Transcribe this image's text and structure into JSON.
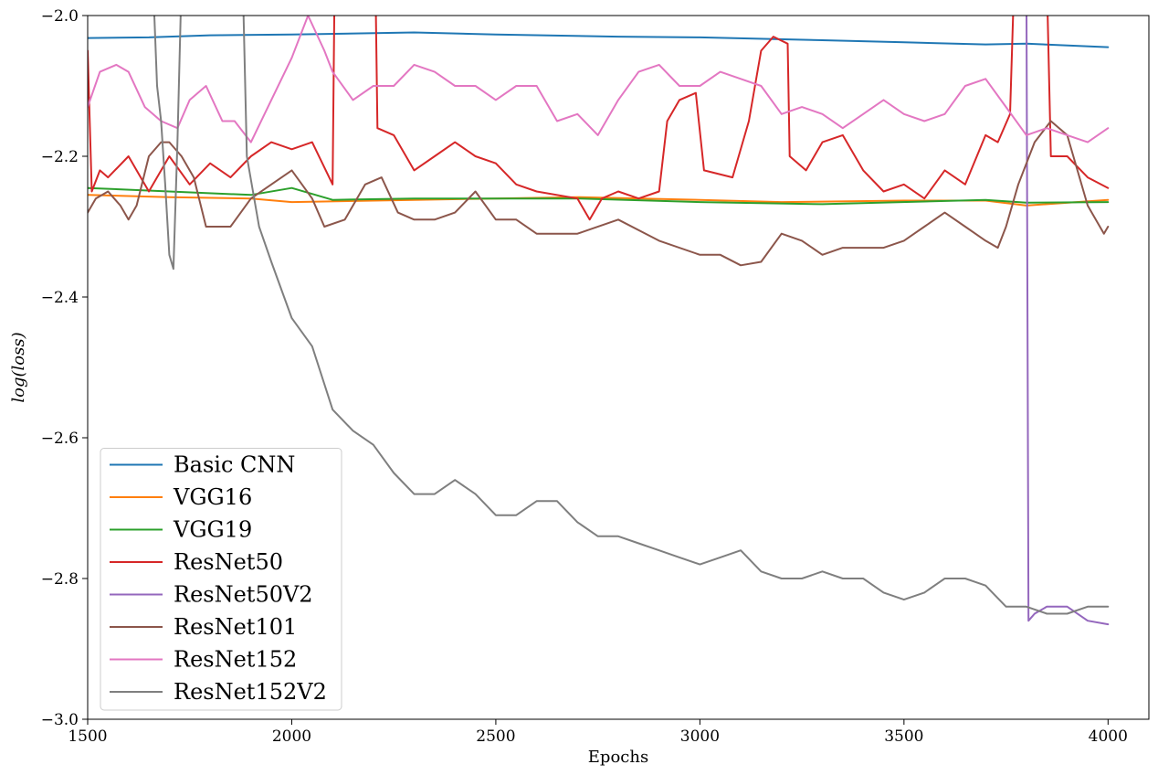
{
  "chart_data": {
    "type": "line",
    "title": "",
    "xlabel": "Epochs",
    "ylabel": "log(loss)",
    "xlim": [
      1500,
      4100
    ],
    "ylim": [
      -3.0,
      -2.0
    ],
    "x_ticks": [
      1500,
      2000,
      2500,
      3000,
      3500,
      4000
    ],
    "y_ticks": [
      -3.0,
      -2.8,
      -2.6,
      -2.4,
      -2.2,
      -2.0
    ],
    "x_tick_labels": [
      "1500",
      "2000",
      "2500",
      "3000",
      "3500",
      "4000"
    ],
    "y_tick_labels": [
      "−3.0",
      "−2.8",
      "−2.6",
      "−2.4",
      "−2.2",
      "−2.0"
    ],
    "grid": false,
    "legend_position": "lower-left",
    "series": [
      {
        "name": "Basic CNN",
        "color": "#1f77b4",
        "points": [
          [
            1500,
            -2.032
          ],
          [
            1650,
            -2.031
          ],
          [
            1800,
            -2.028
          ],
          [
            2000,
            -2.027
          ],
          [
            2300,
            -2.024
          ],
          [
            2500,
            -2.027
          ],
          [
            2800,
            -2.03
          ],
          [
            3000,
            -2.031
          ],
          [
            3300,
            -2.035
          ],
          [
            3500,
            -2.038
          ],
          [
            3700,
            -2.041
          ],
          [
            3800,
            -2.04
          ],
          [
            4000,
            -2.045
          ]
        ]
      },
      {
        "name": "VGG16",
        "color": "#ff7f0e",
        "points": [
          [
            1500,
            -2.255
          ],
          [
            1700,
            -2.258
          ],
          [
            1900,
            -2.26
          ],
          [
            2000,
            -2.265
          ],
          [
            2300,
            -2.262
          ],
          [
            2500,
            -2.26
          ],
          [
            2700,
            -2.258
          ],
          [
            3000,
            -2.262
          ],
          [
            3200,
            -2.265
          ],
          [
            3500,
            -2.263
          ],
          [
            3700,
            -2.263
          ],
          [
            3800,
            -2.27
          ],
          [
            4000,
            -2.262
          ]
        ]
      },
      {
        "name": "VGG19",
        "color": "#2ca02c",
        "points": [
          [
            1500,
            -2.245
          ],
          [
            1700,
            -2.25
          ],
          [
            1900,
            -2.255
          ],
          [
            2000,
            -2.245
          ],
          [
            2100,
            -2.262
          ],
          [
            2300,
            -2.26
          ],
          [
            2500,
            -2.26
          ],
          [
            2700,
            -2.26
          ],
          [
            3000,
            -2.265
          ],
          [
            3300,
            -2.268
          ],
          [
            3700,
            -2.262
          ],
          [
            3800,
            -2.266
          ],
          [
            4000,
            -2.265
          ]
        ]
      },
      {
        "name": "ResNet50",
        "color": "#d62728",
        "points": [
          [
            1500,
            -2.05
          ],
          [
            1510,
            -2.25
          ],
          [
            1530,
            -2.22
          ],
          [
            1550,
            -2.23
          ],
          [
            1600,
            -2.2
          ],
          [
            1650,
            -2.25
          ],
          [
            1700,
            -2.2
          ],
          [
            1750,
            -2.24
          ],
          [
            1800,
            -2.21
          ],
          [
            1850,
            -2.23
          ],
          [
            1900,
            -2.2
          ],
          [
            1950,
            -2.18
          ],
          [
            2000,
            -2.19
          ],
          [
            2050,
            -2.18
          ],
          [
            2100,
            -2.24
          ],
          [
            2105,
            -1.95
          ],
          [
            2205,
            -1.95
          ],
          [
            2210,
            -2.16
          ],
          [
            2250,
            -2.17
          ],
          [
            2300,
            -2.22
          ],
          [
            2350,
            -2.2
          ],
          [
            2400,
            -2.18
          ],
          [
            2450,
            -2.2
          ],
          [
            2500,
            -2.21
          ],
          [
            2550,
            -2.24
          ],
          [
            2600,
            -2.25
          ],
          [
            2700,
            -2.26
          ],
          [
            2730,
            -2.29
          ],
          [
            2760,
            -2.26
          ],
          [
            2800,
            -2.25
          ],
          [
            2850,
            -2.26
          ],
          [
            2900,
            -2.25
          ],
          [
            2920,
            -2.15
          ],
          [
            2950,
            -2.12
          ],
          [
            2990,
            -2.11
          ],
          [
            3010,
            -2.22
          ],
          [
            3080,
            -2.23
          ],
          [
            3120,
            -2.15
          ],
          [
            3150,
            -2.05
          ],
          [
            3180,
            -2.03
          ],
          [
            3215,
            -2.04
          ],
          [
            3220,
            -2.2
          ],
          [
            3260,
            -2.22
          ],
          [
            3300,
            -2.18
          ],
          [
            3350,
            -2.17
          ],
          [
            3400,
            -2.22
          ],
          [
            3450,
            -2.25
          ],
          [
            3500,
            -2.24
          ],
          [
            3550,
            -2.26
          ],
          [
            3600,
            -2.22
          ],
          [
            3650,
            -2.24
          ],
          [
            3700,
            -2.17
          ],
          [
            3730,
            -2.18
          ],
          [
            3760,
            -2.14
          ],
          [
            3770,
            -1.95
          ],
          [
            3850,
            -1.95
          ],
          [
            3860,
            -2.2
          ],
          [
            3900,
            -2.2
          ],
          [
            3950,
            -2.23
          ],
          [
            4000,
            -2.245
          ]
        ]
      },
      {
        "name": "ResNet50V2",
        "color": "#9467bd",
        "points": [
          [
            3800,
            -1.95
          ],
          [
            3805,
            -2.86
          ],
          [
            3820,
            -2.85
          ],
          [
            3850,
            -2.84
          ],
          [
            3900,
            -2.84
          ],
          [
            3950,
            -2.86
          ],
          [
            4000,
            -2.865
          ]
        ]
      },
      {
        "name": "ResNet101",
        "color": "#8c564b",
        "points": [
          [
            1500,
            -2.28
          ],
          [
            1520,
            -2.26
          ],
          [
            1550,
            -2.25
          ],
          [
            1580,
            -2.27
          ],
          [
            1600,
            -2.29
          ],
          [
            1620,
            -2.27
          ],
          [
            1650,
            -2.2
          ],
          [
            1680,
            -2.18
          ],
          [
            1700,
            -2.18
          ],
          [
            1730,
            -2.2
          ],
          [
            1760,
            -2.23
          ],
          [
            1790,
            -2.3
          ],
          [
            1820,
            -2.3
          ],
          [
            1850,
            -2.3
          ],
          [
            1900,
            -2.26
          ],
          [
            1950,
            -2.24
          ],
          [
            2000,
            -2.22
          ],
          [
            2050,
            -2.26
          ],
          [
            2080,
            -2.3
          ],
          [
            2130,
            -2.29
          ],
          [
            2180,
            -2.24
          ],
          [
            2220,
            -2.23
          ],
          [
            2260,
            -2.28
          ],
          [
            2300,
            -2.29
          ],
          [
            2350,
            -2.29
          ],
          [
            2400,
            -2.28
          ],
          [
            2450,
            -2.25
          ],
          [
            2500,
            -2.29
          ],
          [
            2550,
            -2.29
          ],
          [
            2600,
            -2.31
          ],
          [
            2700,
            -2.31
          ],
          [
            2800,
            -2.29
          ],
          [
            2900,
            -2.32
          ],
          [
            3000,
            -2.34
          ],
          [
            3050,
            -2.34
          ],
          [
            3100,
            -2.355
          ],
          [
            3150,
            -2.35
          ],
          [
            3200,
            -2.31
          ],
          [
            3250,
            -2.32
          ],
          [
            3300,
            -2.34
          ],
          [
            3350,
            -2.33
          ],
          [
            3450,
            -2.33
          ],
          [
            3500,
            -2.32
          ],
          [
            3550,
            -2.3
          ],
          [
            3600,
            -2.28
          ],
          [
            3650,
            -2.3
          ],
          [
            3700,
            -2.32
          ],
          [
            3730,
            -2.33
          ],
          [
            3750,
            -2.3
          ],
          [
            3780,
            -2.24
          ],
          [
            3820,
            -2.18
          ],
          [
            3860,
            -2.15
          ],
          [
            3900,
            -2.17
          ],
          [
            3950,
            -2.27
          ],
          [
            3990,
            -2.31
          ],
          [
            4000,
            -2.3
          ]
        ]
      },
      {
        "name": "ResNet152",
        "color": "#e377c2",
        "points": [
          [
            1500,
            -2.13
          ],
          [
            1530,
            -2.08
          ],
          [
            1570,
            -2.07
          ],
          [
            1600,
            -2.08
          ],
          [
            1640,
            -2.13
          ],
          [
            1680,
            -2.15
          ],
          [
            1720,
            -2.16
          ],
          [
            1750,
            -2.12
          ],
          [
            1790,
            -2.1
          ],
          [
            1830,
            -2.15
          ],
          [
            1860,
            -2.15
          ],
          [
            1900,
            -2.18
          ],
          [
            1950,
            -2.12
          ],
          [
            2000,
            -2.06
          ],
          [
            2040,
            -2.0
          ],
          [
            2080,
            -2.05
          ],
          [
            2100,
            -2.08
          ],
          [
            2150,
            -2.12
          ],
          [
            2200,
            -2.1
          ],
          [
            2250,
            -2.1
          ],
          [
            2300,
            -2.07
          ],
          [
            2350,
            -2.08
          ],
          [
            2400,
            -2.1
          ],
          [
            2450,
            -2.1
          ],
          [
            2500,
            -2.12
          ],
          [
            2550,
            -2.1
          ],
          [
            2600,
            -2.1
          ],
          [
            2650,
            -2.15
          ],
          [
            2700,
            -2.14
          ],
          [
            2750,
            -2.17
          ],
          [
            2800,
            -2.12
          ],
          [
            2850,
            -2.08
          ],
          [
            2900,
            -2.07
          ],
          [
            2950,
            -2.1
          ],
          [
            3000,
            -2.1
          ],
          [
            3050,
            -2.08
          ],
          [
            3100,
            -2.09
          ],
          [
            3150,
            -2.1
          ],
          [
            3200,
            -2.14
          ],
          [
            3250,
            -2.13
          ],
          [
            3300,
            -2.14
          ],
          [
            3350,
            -2.16
          ],
          [
            3400,
            -2.14
          ],
          [
            3450,
            -2.12
          ],
          [
            3500,
            -2.14
          ],
          [
            3550,
            -2.15
          ],
          [
            3600,
            -2.14
          ],
          [
            3650,
            -2.1
          ],
          [
            3700,
            -2.09
          ],
          [
            3750,
            -2.13
          ],
          [
            3800,
            -2.17
          ],
          [
            3850,
            -2.16
          ],
          [
            3900,
            -2.17
          ],
          [
            3950,
            -2.18
          ],
          [
            4000,
            -2.16
          ]
        ]
      },
      {
        "name": "ResNet152V2",
        "color": "#7f7f7f",
        "points": [
          [
            1660,
            -1.95
          ],
          [
            1670,
            -2.1
          ],
          [
            1680,
            -2.15
          ],
          [
            1690,
            -2.24
          ],
          [
            1700,
            -2.34
          ],
          [
            1710,
            -2.36
          ],
          [
            1720,
            -2.18
          ],
          [
            1730,
            -1.95
          ],
          [
            1880,
            -1.95
          ],
          [
            1890,
            -2.2
          ],
          [
            1920,
            -2.3
          ],
          [
            1950,
            -2.35
          ],
          [
            2000,
            -2.43
          ],
          [
            2050,
            -2.47
          ],
          [
            2100,
            -2.56
          ],
          [
            2150,
            -2.59
          ],
          [
            2200,
            -2.61
          ],
          [
            2250,
            -2.65
          ],
          [
            2300,
            -2.68
          ],
          [
            2350,
            -2.68
          ],
          [
            2400,
            -2.66
          ],
          [
            2450,
            -2.68
          ],
          [
            2500,
            -2.71
          ],
          [
            2550,
            -2.71
          ],
          [
            2600,
            -2.69
          ],
          [
            2650,
            -2.69
          ],
          [
            2700,
            -2.72
          ],
          [
            2750,
            -2.74
          ],
          [
            2800,
            -2.74
          ],
          [
            2850,
            -2.75
          ],
          [
            2900,
            -2.76
          ],
          [
            2950,
            -2.77
          ],
          [
            3000,
            -2.78
          ],
          [
            3050,
            -2.77
          ],
          [
            3100,
            -2.76
          ],
          [
            3150,
            -2.79
          ],
          [
            3200,
            -2.8
          ],
          [
            3250,
            -2.8
          ],
          [
            3300,
            -2.79
          ],
          [
            3350,
            -2.8
          ],
          [
            3400,
            -2.8
          ],
          [
            3450,
            -2.82
          ],
          [
            3500,
            -2.83
          ],
          [
            3550,
            -2.82
          ],
          [
            3600,
            -2.8
          ],
          [
            3650,
            -2.8
          ],
          [
            3700,
            -2.81
          ],
          [
            3750,
            -2.84
          ],
          [
            3800,
            -2.84
          ],
          [
            3850,
            -2.85
          ],
          [
            3900,
            -2.85
          ],
          [
            3950,
            -2.84
          ],
          [
            4000,
            -2.84
          ]
        ]
      }
    ]
  }
}
